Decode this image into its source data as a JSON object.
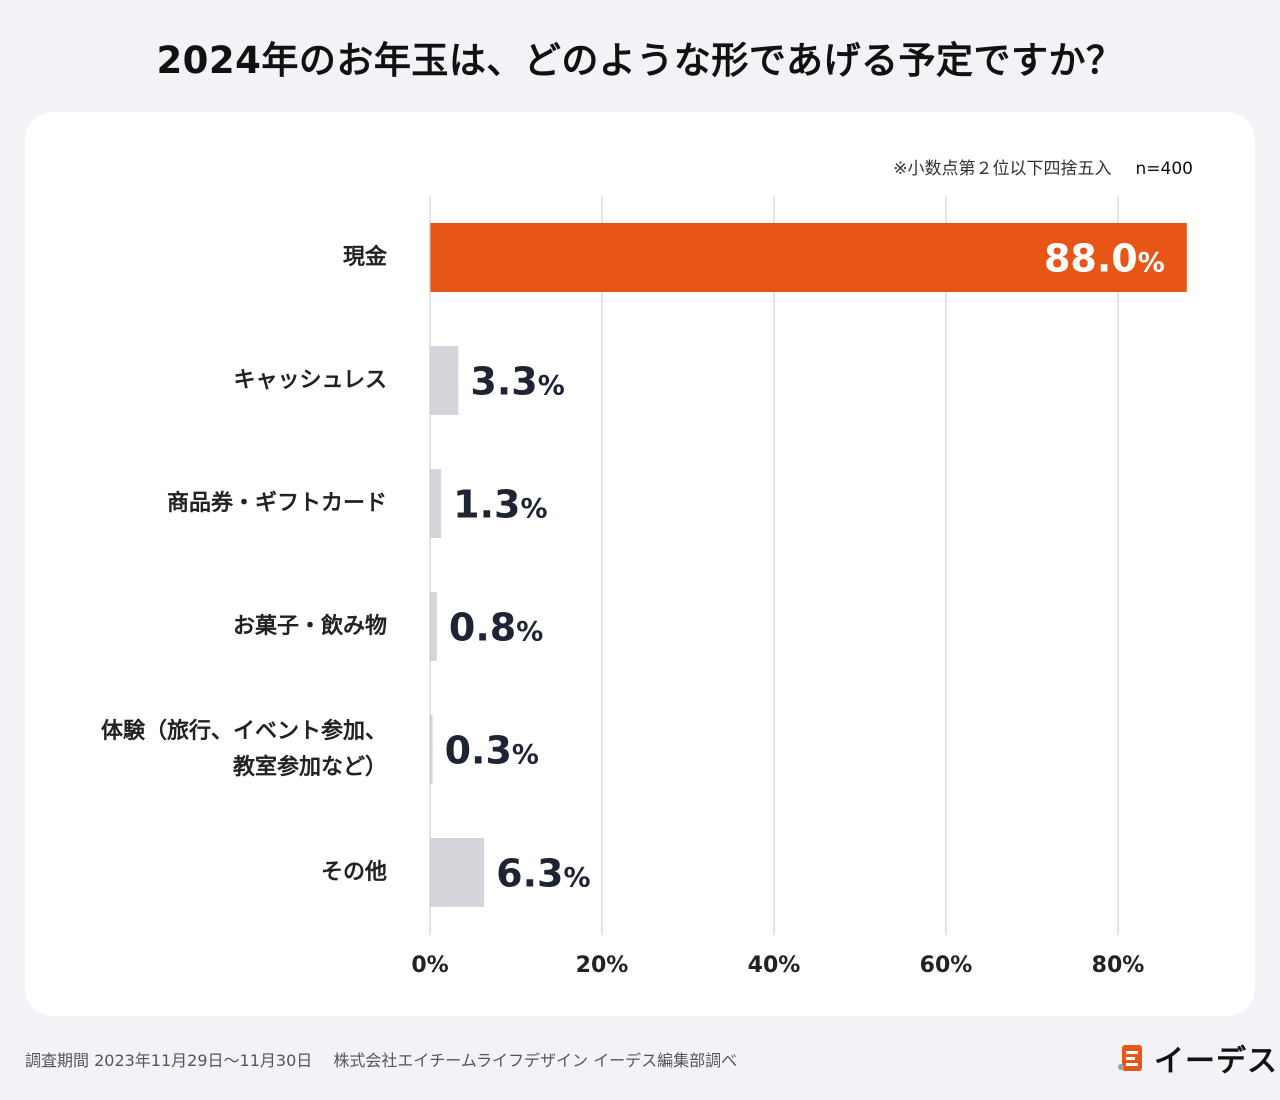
{
  "title": "2024年のお年玉は、どのような形であげる予定ですか？",
  "note": "※小数点第２位以下四捨五入",
  "sample_size": "n=400",
  "footer": "調査期間 2023年11月29日〜11月30日　 株式会社エイチームライフデザイン イーデス編集部調べ",
  "logo_text": "イーデス",
  "colors": {
    "highlight": "#e85617",
    "bar": "#d4d6dc",
    "grid": "#c8c9cc",
    "label": "#1e2433"
  },
  "chart_data": {
    "type": "bar",
    "orientation": "horizontal",
    "title": "2024年のお年玉は、どのような形であげる予定ですか？",
    "categories": [
      "現金",
      "キャッシュレス",
      "商品券・ギフトカード",
      "お菓子・飲み物",
      "体験（旅行、イベント参加、\n教室参加など）",
      "その他"
    ],
    "category_lines": [
      [
        "現金"
      ],
      [
        "キャッシュレス"
      ],
      [
        "商品券・ギフトカード"
      ],
      [
        "お菓子・飲み物"
      ],
      [
        "体験（旅行、イベント参加、",
        "教室参加など）"
      ],
      [
        "その他"
      ]
    ],
    "values": [
      88.0,
      3.3,
      1.3,
      0.8,
      0.3,
      6.3
    ],
    "value_labels": [
      "88.0",
      "3.3",
      "1.3",
      "0.8",
      "0.3",
      "6.3"
    ],
    "unit": "%",
    "xlim": [
      0,
      80
    ],
    "xticks": [
      0,
      20,
      40,
      60,
      80
    ],
    "xtick_labels": [
      "0%",
      "20%",
      "40%",
      "60%",
      "80%"
    ],
    "grid": true
  }
}
